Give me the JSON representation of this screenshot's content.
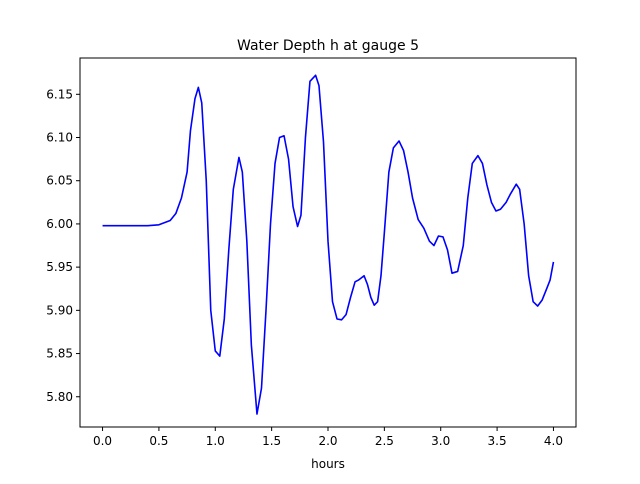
{
  "chart_data": {
    "type": "line",
    "title": "Water Depth h at gauge 5",
    "xlabel": "hours",
    "ylabel": "",
    "xlim": [
      -0.2,
      4.2
    ],
    "ylim": [
      5.765,
      6.192
    ],
    "xticks": [
      0.0,
      0.5,
      1.0,
      1.5,
      2.0,
      2.5,
      3.0,
      3.5,
      4.0
    ],
    "xtick_labels": [
      "0.0",
      "0.5",
      "1.0",
      "1.5",
      "2.0",
      "2.5",
      "3.0",
      "3.5",
      "4.0"
    ],
    "yticks": [
      5.8,
      5.85,
      5.9,
      5.95,
      6.0,
      6.05,
      6.1,
      6.15
    ],
    "ytick_labels": [
      "5.80",
      "5.85",
      "5.90",
      "5.95",
      "6.00",
      "6.05",
      "6.10",
      "6.15"
    ],
    "grid": false,
    "series": [
      {
        "color": "#0000ff",
        "x": [
          0.0,
          0.2,
          0.4,
          0.5,
          0.6,
          0.65,
          0.7,
          0.75,
          0.78,
          0.82,
          0.85,
          0.88,
          0.92,
          0.96,
          1.0,
          1.04,
          1.08,
          1.12,
          1.16,
          1.21,
          1.24,
          1.28,
          1.32,
          1.37,
          1.41,
          1.45,
          1.49,
          1.53,
          1.57,
          1.61,
          1.65,
          1.69,
          1.73,
          1.76,
          1.8,
          1.84,
          1.89,
          1.92,
          1.96,
          2.0,
          2.04,
          2.08,
          2.12,
          2.16,
          2.2,
          2.24,
          2.27,
          2.32,
          2.35,
          2.38,
          2.41,
          2.44,
          2.47,
          2.5,
          2.54,
          2.58,
          2.63,
          2.67,
          2.71,
          2.75,
          2.8,
          2.85,
          2.9,
          2.94,
          2.98,
          3.02,
          3.06,
          3.1,
          3.15,
          3.2,
          3.24,
          3.28,
          3.33,
          3.37,
          3.41,
          3.45,
          3.49,
          3.53,
          3.58,
          3.62,
          3.67,
          3.7,
          3.74,
          3.78,
          3.82,
          3.86,
          3.9,
          3.94,
          3.97,
          4.0
        ],
        "y": [
          5.998,
          5.998,
          5.998,
          5.999,
          6.004,
          6.012,
          6.03,
          6.06,
          6.108,
          6.145,
          6.158,
          6.14,
          6.05,
          5.9,
          5.853,
          5.847,
          5.89,
          5.97,
          6.04,
          6.077,
          6.06,
          5.98,
          5.86,
          5.78,
          5.81,
          5.9,
          6.0,
          6.07,
          6.1,
          6.102,
          6.075,
          6.02,
          5.997,
          6.01,
          6.1,
          6.165,
          6.172,
          6.16,
          6.095,
          5.98,
          5.91,
          5.89,
          5.889,
          5.895,
          5.915,
          5.933,
          5.935,
          5.94,
          5.93,
          5.915,
          5.906,
          5.91,
          5.94,
          5.99,
          6.06,
          6.088,
          6.096,
          6.085,
          6.06,
          6.03,
          6.005,
          5.995,
          5.98,
          5.975,
          5.986,
          5.985,
          5.97,
          5.943,
          5.945,
          5.975,
          6.03,
          6.07,
          6.079,
          6.07,
          6.045,
          6.025,
          6.015,
          6.017,
          6.025,
          6.035,
          6.046,
          6.04,
          6.0,
          5.94,
          5.91,
          5.905,
          5.912,
          5.925,
          5.935,
          5.956
        ]
      }
    ]
  }
}
